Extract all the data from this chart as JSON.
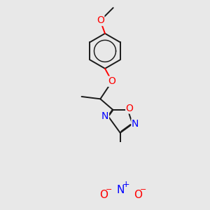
{
  "bg_color": "#e8e8e8",
  "bond_color": "#1a1a1a",
  "bond_width": 1.4,
  "atom_colors": {
    "O": "#ff0000",
    "N": "#0000ff",
    "C": "#1a1a1a"
  },
  "font_size": 10,
  "fig_size": [
    3.0,
    3.0
  ],
  "dpi": 100
}
